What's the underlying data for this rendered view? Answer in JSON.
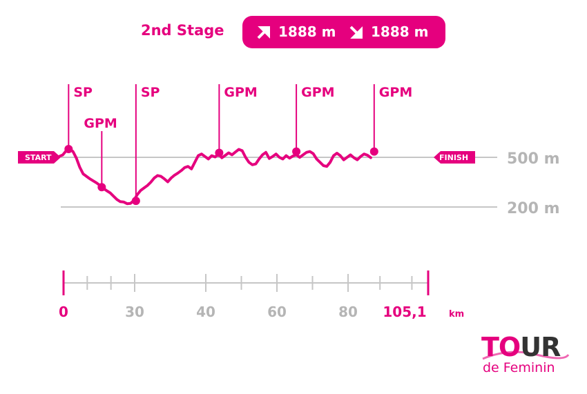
{
  "header": {
    "title": "2nd Stage",
    "ascent": "1888 m",
    "descent": "1888 m",
    "ascent_icon": "arrow-up-right-icon",
    "descent_icon": "arrow-down-right-icon"
  },
  "colors": {
    "accent": "#e5007e",
    "grid": "#c6c6c6",
    "axis_text": "#b5b5b5"
  },
  "chart_data": {
    "type": "line",
    "x_unit": "km",
    "y_unit": "m",
    "y_reference_lines": [
      {
        "value": 500,
        "label": "500 m"
      },
      {
        "value": 200,
        "label": "200 m"
      }
    ],
    "x_ticks": [
      {
        "value": 0,
        "label": "0",
        "highlight": true
      },
      {
        "value": 30,
        "label": "30"
      },
      {
        "value": 40,
        "label": "40"
      },
      {
        "value": 60,
        "label": "60"
      },
      {
        "value": 80,
        "label": "80"
      },
      {
        "value": 105.1,
        "label": "105,1",
        "highlight": true
      }
    ],
    "x_minor_ticks": [
      10,
      20,
      50,
      70,
      90,
      100
    ],
    "x_unit_label": "km",
    "start_label": "START",
    "finish_label": "FINISH",
    "profile": [
      [
        -2,
        497
      ],
      [
        0,
        515
      ],
      [
        1,
        540
      ],
      [
        2,
        550
      ],
      [
        3,
        535
      ],
      [
        4,
        495
      ],
      [
        5,
        440
      ],
      [
        6,
        400
      ],
      [
        8,
        370
      ],
      [
        10,
        345
      ],
      [
        11,
        330
      ],
      [
        12,
        312
      ],
      [
        13,
        298
      ],
      [
        14,
        285
      ],
      [
        15,
        265
      ],
      [
        16,
        245
      ],
      [
        17,
        232
      ],
      [
        18,
        230
      ],
      [
        19,
        220
      ],
      [
        20,
        222
      ],
      [
        21,
        240
      ],
      [
        22,
        275
      ],
      [
        23,
        300
      ],
      [
        24,
        315
      ],
      [
        25,
        330
      ],
      [
        26,
        350
      ],
      [
        27,
        375
      ],
      [
        28,
        390
      ],
      [
        29,
        385
      ],
      [
        30,
        370
      ],
      [
        31,
        352
      ],
      [
        32,
        375
      ],
      [
        33,
        392
      ],
      [
        34,
        405
      ],
      [
        35,
        420
      ],
      [
        36,
        438
      ],
      [
        37,
        445
      ],
      [
        38,
        430
      ],
      [
        39,
        470
      ],
      [
        40,
        510
      ],
      [
        41,
        520
      ],
      [
        42,
        505
      ],
      [
        43,
        490
      ],
      [
        44,
        510
      ],
      [
        45,
        502
      ],
      [
        46,
        520
      ],
      [
        47,
        497
      ],
      [
        48,
        512
      ],
      [
        49,
        527
      ],
      [
        50,
        515
      ],
      [
        51,
        532
      ],
      [
        52,
        548
      ],
      [
        53,
        540
      ],
      [
        54,
        500
      ],
      [
        55,
        470
      ],
      [
        56,
        455
      ],
      [
        57,
        460
      ],
      [
        58,
        490
      ],
      [
        59,
        515
      ],
      [
        60,
        530
      ],
      [
        61,
        493
      ],
      [
        62,
        505
      ],
      [
        63,
        520
      ],
      [
        64,
        500
      ],
      [
        65,
        490
      ],
      [
        66,
        510
      ],
      [
        67,
        495
      ],
      [
        68,
        508
      ],
      [
        69,
        515
      ],
      [
        70,
        500
      ],
      [
        71,
        515
      ],
      [
        72,
        530
      ],
      [
        73,
        535
      ],
      [
        74,
        522
      ],
      [
        75,
        490
      ],
      [
        76,
        470
      ],
      [
        77,
        450
      ],
      [
        78,
        445
      ],
      [
        79,
        470
      ],
      [
        80,
        510
      ],
      [
        81,
        525
      ],
      [
        82,
        510
      ],
      [
        83,
        485
      ],
      [
        84,
        500
      ],
      [
        85,
        515
      ],
      [
        86,
        498
      ],
      [
        87,
        485
      ],
      [
        88,
        505
      ],
      [
        89,
        520
      ],
      [
        90,
        513
      ],
      [
        91,
        498
      ]
    ],
    "markers": [
      {
        "label": "SP",
        "km": 1.7,
        "elev": 550
      },
      {
        "label": "GPM",
        "km": 11.5,
        "elev": 320
      },
      {
        "label": "SP",
        "km": 21.6,
        "elev": 237
      },
      {
        "label": "GPM",
        "km": 46.2,
        "elev": 527
      },
      {
        "label": "GPM",
        "km": 69.0,
        "elev": 535
      },
      {
        "label": "GPM",
        "km": 92.0,
        "elev": 535
      }
    ]
  },
  "logo": {
    "word_pink": "TO",
    "word_dark": "UR",
    "subtitle": "de Feminin"
  }
}
